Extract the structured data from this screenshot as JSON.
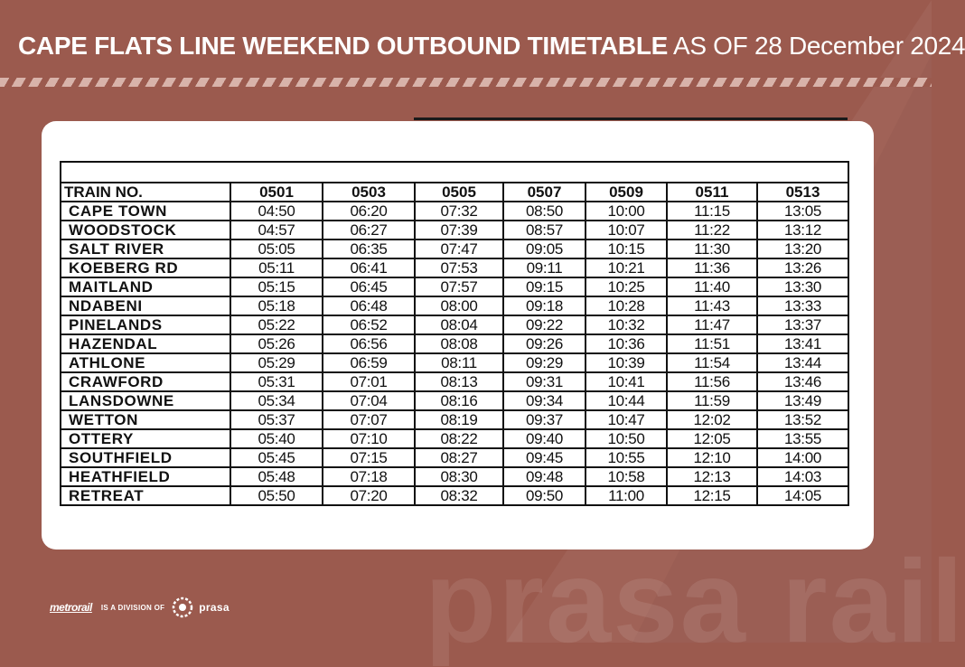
{
  "header": {
    "title_bold": "CAPE FLATS LINE WEEKEND OUTBOUND TIMETABLE",
    "title_light": " AS OF 28 December 2024"
  },
  "timetable": {
    "header_label": "TRAIN NO.",
    "trains": [
      "0501",
      "0503",
      "0505",
      "0507",
      "0509",
      "0511",
      "0513"
    ],
    "rows": [
      {
        "station": "CAPE TOWN",
        "times": [
          "04:50",
          "06:20",
          "07:32",
          "08:50",
          "10:00",
          "11:15",
          "13:05"
        ]
      },
      {
        "station": "WOODSTOCK",
        "times": [
          "04:57",
          "06:27",
          "07:39",
          "08:57",
          "10:07",
          "11:22",
          "13:12"
        ]
      },
      {
        "station": "SALT RIVER",
        "times": [
          "05:05",
          "06:35",
          "07:47",
          "09:05",
          "10:15",
          "11:30",
          "13:20"
        ]
      },
      {
        "station": "KOEBERG RD",
        "times": [
          "05:11",
          "06:41",
          "07:53",
          "09:11",
          "10:21",
          "11:36",
          "13:26"
        ]
      },
      {
        "station": "MAITLAND",
        "times": [
          "05:15",
          "06:45",
          "07:57",
          "09:15",
          "10:25",
          "11:40",
          "13:30"
        ]
      },
      {
        "station": "NDABENI",
        "times": [
          "05:18",
          "06:48",
          "08:00",
          "09:18",
          "10:28",
          "11:43",
          "13:33"
        ]
      },
      {
        "station": "PINELANDS",
        "times": [
          "05:22",
          "06:52",
          "08:04",
          "09:22",
          "10:32",
          "11:47",
          "13:37"
        ]
      },
      {
        "station": "HAZENDAL",
        "times": [
          "05:26",
          "06:56",
          "08:08",
          "09:26",
          "10:36",
          "11:51",
          "13:41"
        ]
      },
      {
        "station": "ATHLONE",
        "times": [
          "05:29",
          "06:59",
          "08:11",
          "09:29",
          "10:39",
          "11:54",
          "13:44"
        ]
      },
      {
        "station": "CRAWFORD",
        "times": [
          "05:31",
          "07:01",
          "08:13",
          "09:31",
          "10:41",
          "11:56",
          "13:46"
        ]
      },
      {
        "station": "LANSDOWNE",
        "times": [
          "05:34",
          "07:04",
          "08:16",
          "09:34",
          "10:44",
          "11:59",
          "13:49"
        ]
      },
      {
        "station": "WETTON",
        "times": [
          "05:37",
          "07:07",
          "08:19",
          "09:37",
          "10:47",
          "12:02",
          "13:52"
        ]
      },
      {
        "station": "OTTERY",
        "times": [
          "05:40",
          "07:10",
          "08:22",
          "09:40",
          "10:50",
          "12:05",
          "13:55"
        ]
      },
      {
        "station": "SOUTHFIELD",
        "times": [
          "05:45",
          "07:15",
          "08:27",
          "09:45",
          "10:55",
          "12:10",
          "14:00"
        ]
      },
      {
        "station": "HEATHFIELD",
        "times": [
          "05:48",
          "07:18",
          "08:30",
          "09:48",
          "10:58",
          "12:13",
          "14:03"
        ]
      },
      {
        "station": "RETREAT",
        "times": [
          "05:50",
          "07:20",
          "08:32",
          "09:50",
          "11:00",
          "12:15",
          "14:05"
        ]
      }
    ]
  },
  "footer": {
    "metrorail_logo": "metrorail",
    "division_text": "IS A DIVISION OF",
    "prasa_logo": "prasa",
    "watermark": "prasa rail"
  },
  "colors": {
    "background": "#9b5a4e",
    "stripe": "#d8b3aa",
    "card": "#ffffff"
  }
}
